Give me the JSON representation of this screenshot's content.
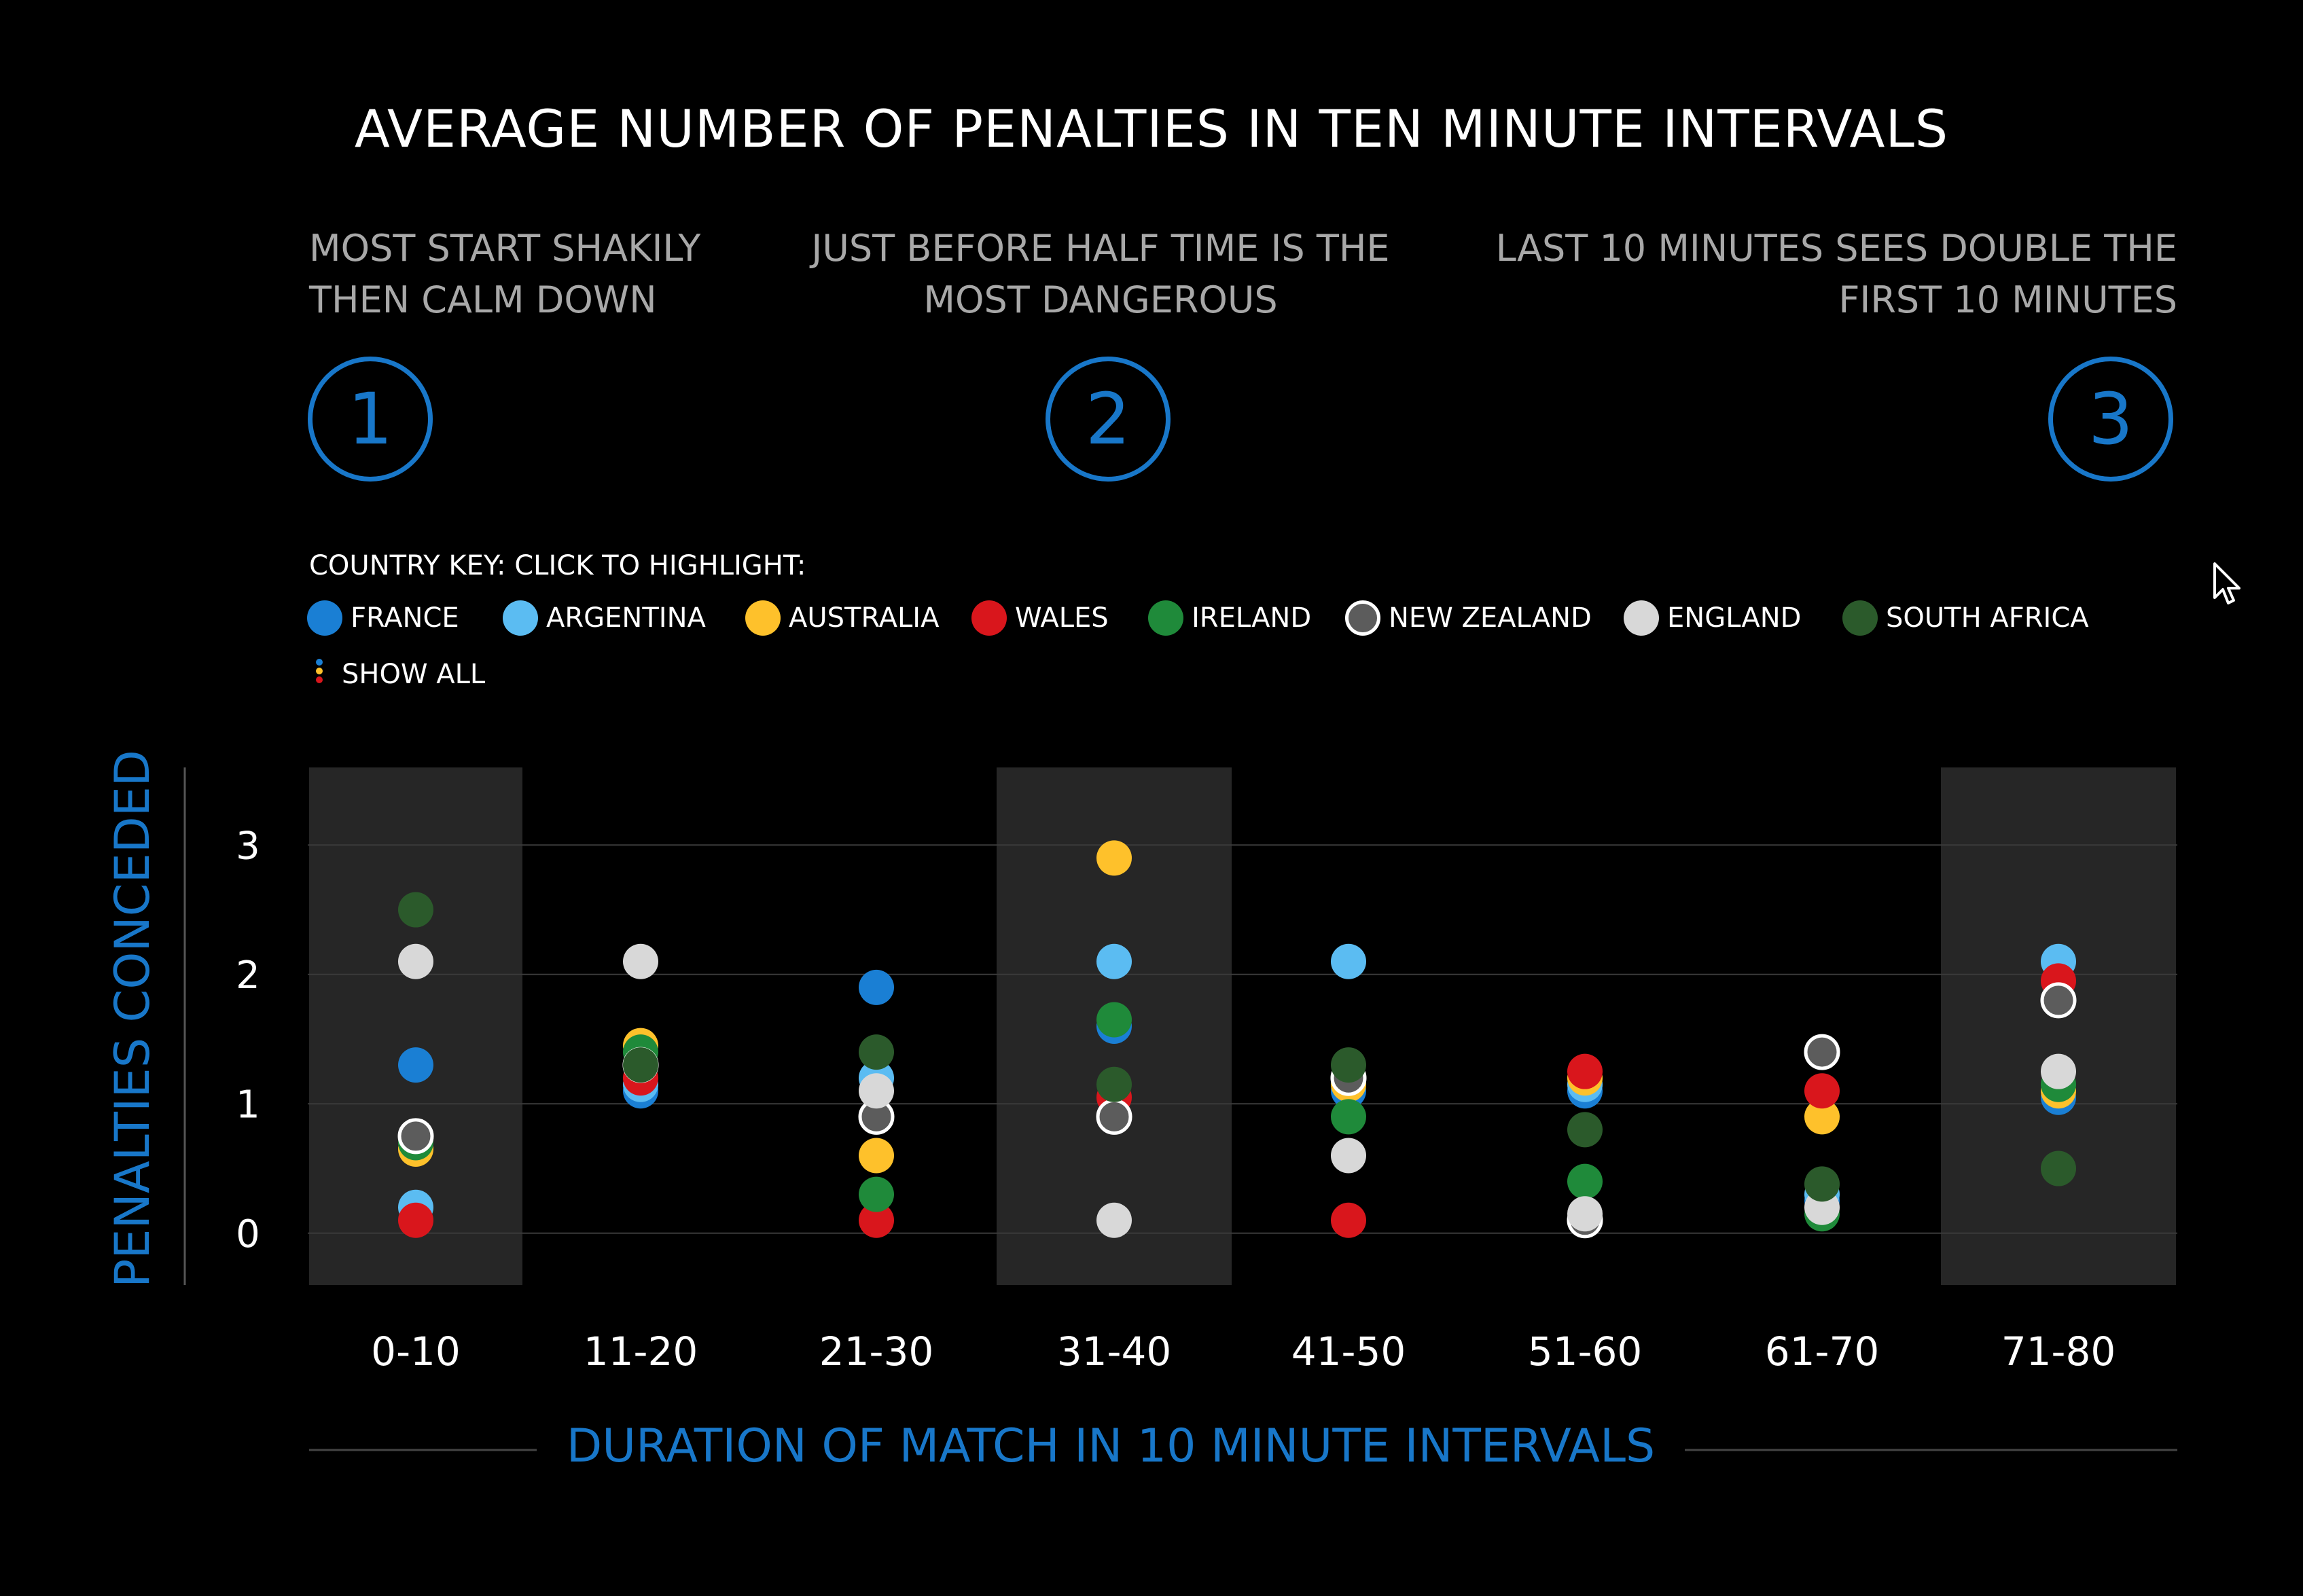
{
  "title": "AVERAGE NUMBER OF PENALTIES IN TEN MINUTE INTERVALS",
  "insights": [
    {
      "number": "1",
      "text": "MOST START SHAKILY THEN CALM DOWN"
    },
    {
      "number": "2",
      "text": "JUST BEFORE HALF TIME IS THE MOST DANGEROUS"
    },
    {
      "number": "3",
      "text": "LAST 10 MINUTES SEES DOUBLE THE FIRST 10 MINUTES"
    }
  ],
  "key": {
    "title": "COUNTRY KEY: CLICK TO HIGHLIGHT:",
    "show_all": "SHOW ALL",
    "items": [
      {
        "name": "FRANCE",
        "color": "#1a7fd4"
      },
      {
        "name": "ARGENTINA",
        "color": "#5bbcf2"
      },
      {
        "name": "AUSTRALIA",
        "color": "#fec12b"
      },
      {
        "name": "WALES",
        "color": "#d9161c"
      },
      {
        "name": "IRELAND",
        "color": "#1f8a3a"
      },
      {
        "name": "NEW ZEALAND",
        "color": "#5c5c5c"
      },
      {
        "name": "ENGLAND",
        "color": "#d8d8d8"
      },
      {
        "name": "SOUTH AFRICA",
        "color": "#2b5a2b"
      }
    ]
  },
  "chart_data": {
    "type": "scatter",
    "title": "AVERAGE NUMBER OF PENALTIES IN TEN MINUTE INTERVALS",
    "xlabel": "DURATION OF MATCH IN 10 MINUTE INTERVALS",
    "ylabel": "PENALTIES CONCEDED",
    "categories": [
      "0-10",
      "11-20",
      "21-30",
      "31-40",
      "41-50",
      "51-60",
      "61-70",
      "71-80"
    ],
    "ylim": [
      -0.4,
      3.6
    ],
    "yticks": [
      0,
      1,
      2,
      3
    ],
    "grid": true,
    "highlighted_categories": [
      "0-10",
      "31-40",
      "71-80"
    ],
    "series": [
      {
        "name": "FRANCE",
        "color": "#1a7fd4",
        "values": [
          1.3,
          1.1,
          1.9,
          1.6,
          1.1,
          1.1,
          0.25,
          1.05
        ]
      },
      {
        "name": "ARGENTINA",
        "color": "#5bbcf2",
        "values": [
          0.2,
          1.15,
          1.2,
          2.1,
          2.1,
          1.15,
          0.3,
          2.1
        ]
      },
      {
        "name": "AUSTRALIA",
        "color": "#fec12b",
        "values": [
          0.65,
          1.45,
          0.6,
          2.9,
          1.15,
          1.2,
          0.9,
          1.1
        ]
      },
      {
        "name": "WALES",
        "color": "#d9161c",
        "values": [
          0.1,
          1.2,
          0.1,
          1.05,
          0.1,
          1.25,
          1.1,
          1.95
        ]
      },
      {
        "name": "IRELAND",
        "color": "#1f8a3a",
        "values": [
          0.7,
          1.4,
          0.3,
          1.65,
          0.9,
          0.4,
          0.15,
          1.15
        ]
      },
      {
        "name": "NEW ZEALAND",
        "color": "#5c5c5c",
        "values": [
          0.75,
          1.3,
          0.9,
          0.9,
          1.2,
          0.1,
          1.4,
          1.8
        ]
      },
      {
        "name": "ENGLAND",
        "color": "#d8d8d8",
        "values": [
          2.1,
          2.1,
          1.1,
          0.1,
          0.6,
          0.15,
          0.2,
          1.25
        ]
      },
      {
        "name": "SOUTH AFRICA",
        "color": "#2b5a2b",
        "values": [
          2.5,
          1.3,
          1.4,
          1.15,
          1.3,
          0.8,
          0.38,
          0.5
        ]
      }
    ]
  }
}
